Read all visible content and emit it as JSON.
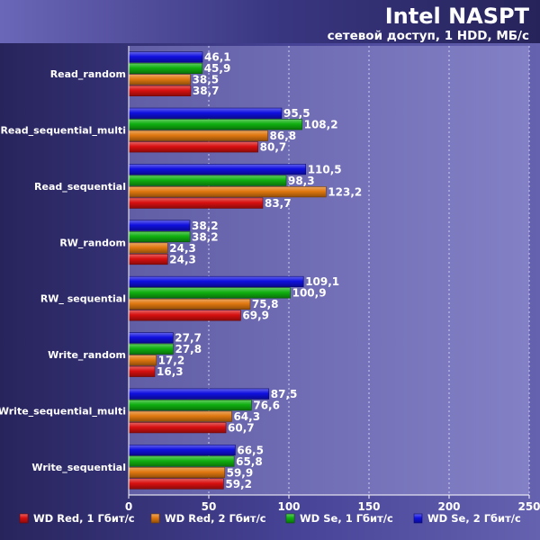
{
  "chart_data": {
    "type": "bar",
    "orientation": "horizontal",
    "title": "Intel NASPT",
    "subtitle": "сетевой доступ, 1 HDD, МБ/с",
    "xlim": [
      0,
      250
    ],
    "x_ticks": [
      0,
      50,
      100,
      150,
      200,
      250
    ],
    "grid": true,
    "legend_position": "bottom",
    "categories": [
      "Read_random",
      "Read_sequential_multi",
      "Read_sequential",
      "RW_random",
      "RW_ sequential",
      "Write_random",
      "Write_sequential_multi",
      "Write_sequential"
    ],
    "series": [
      {
        "name": "WD Se, 2 Гбит/с",
        "color": "#1010e0",
        "values": [
          46.1,
          95.5,
          110.5,
          38.2,
          109.1,
          27.7,
          87.5,
          66.5
        ],
        "labels": [
          "46,1",
          "95,5",
          "110,5",
          "38,2",
          "109,1",
          "27,7",
          "87,5",
          "66,5"
        ]
      },
      {
        "name": "WD Se, 1 Гбит/с",
        "color": "#10b010",
        "values": [
          45.9,
          108.2,
          98.3,
          38.2,
          100.9,
          27.8,
          76.6,
          65.8
        ],
        "labels": [
          "45,9",
          "108,2",
          "98,3",
          "38,2",
          "100,9",
          "27,8",
          "76,6",
          "65,8"
        ]
      },
      {
        "name": "WD Red, 2 Гбит/с",
        "color": "#e07810",
        "values": [
          38.5,
          86.8,
          123.2,
          24.3,
          75.8,
          17.2,
          64.3,
          59.9
        ],
        "labels": [
          "38,5",
          "86,8",
          "123,2",
          "24,3",
          "75,8",
          "17,2",
          "64,3",
          "59,9"
        ]
      },
      {
        "name": "WD Red, 1 Гбит/с",
        "color": "#d81010",
        "values": [
          38.7,
          80.7,
          83.7,
          24.3,
          69.9,
          16.3,
          60.7,
          59.2
        ],
        "labels": [
          "38,7",
          "80,7",
          "83,7",
          "24,3",
          "69,9",
          "16,3",
          "60,7",
          "59,2"
        ]
      }
    ],
    "legend_order": [
      "WD Red, 1 Гбит/с",
      "WD Red, 2 Гбит/с",
      "WD Se, 1 Гбит/с",
      "WD Se, 2 Гбит/с"
    ]
  }
}
